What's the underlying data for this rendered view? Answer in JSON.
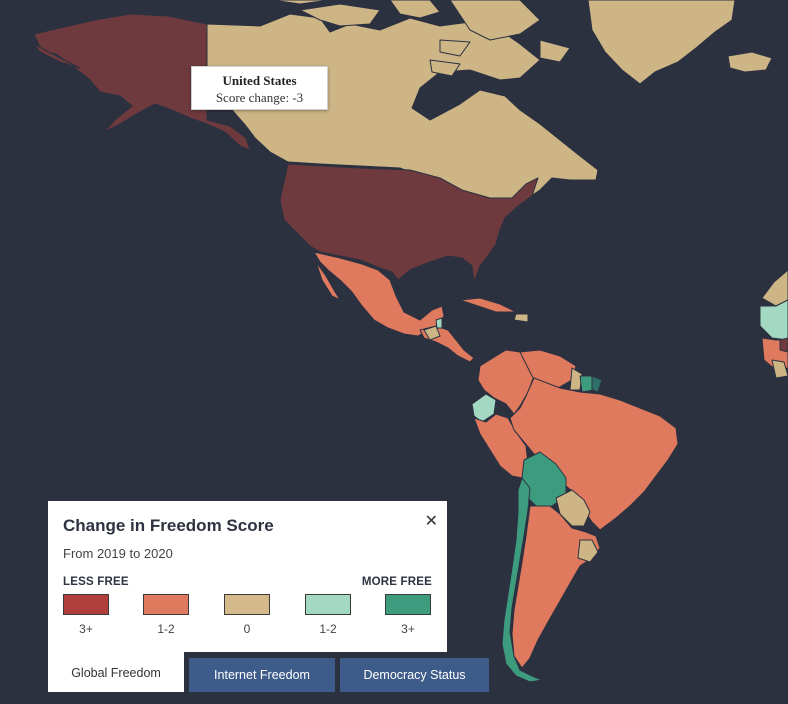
{
  "tooltip": {
    "country": "United States",
    "score_text": "Score change: -3"
  },
  "legend": {
    "title": "Change in Freedom Score",
    "subtitle": "From 2019 to 2020",
    "close_symbol": "✕",
    "less_label": "LESS FREE",
    "more_label": "MORE FREE",
    "categories": [
      {
        "label": "3+",
        "color": "#b03e3b"
      },
      {
        "label": "1-2",
        "color": "#e07a5f"
      },
      {
        "label": "0",
        "color": "#d4b98a"
      },
      {
        "label": "1-2",
        "color": "#a3d8c2"
      },
      {
        "label": "3+",
        "color": "#3e9c7e"
      }
    ]
  },
  "tabs": [
    {
      "label": "Global Freedom",
      "active": true
    },
    {
      "label": "Internet Freedom",
      "active": false
    },
    {
      "label": "Democracy Status",
      "active": false
    }
  ],
  "map_colors": {
    "ocean": "#2c3140",
    "minus3": "#6e3a3d",
    "minus12": "#e07a5f",
    "zero": "#cdb586",
    "plus12": "#a3d8c2",
    "plus3": "#3e9c7e",
    "plus3_dark": "#2f6f6a"
  }
}
